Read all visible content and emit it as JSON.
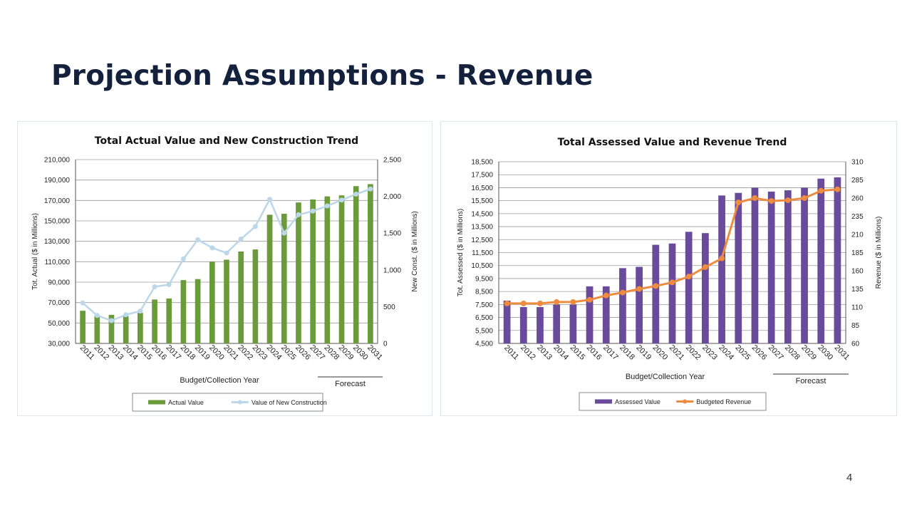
{
  "slide": {
    "title": "Projection Assumptions - Revenue",
    "page_number": "4"
  },
  "chart_data": [
    {
      "type": "bar",
      "title": "Total Actual Value and New Construction Trend",
      "xlabel": "Budget/Collection Year",
      "ylabel": "Tot. Actual ($ in Millions)",
      "y2label": "New Const. ($ in Millions)",
      "forecast_label": "Forecast",
      "categories": [
        "2011",
        "2012",
        "2013",
        "2014",
        "2015",
        "2016",
        "2017",
        "2018",
        "2019",
        "2020",
        "2021",
        "2022",
        "2023",
        "2024",
        "2025",
        "2026",
        "2027",
        "2028",
        "2029",
        "2030",
        "2031"
      ],
      "ylim": [
        30000,
        210000
      ],
      "yticks": [
        "30,000",
        "50,000",
        "70,000",
        "90,000",
        "110,000",
        "130,000",
        "150,000",
        "170,000",
        "190,000",
        "210,000"
      ],
      "y2lim": [
        0,
        2500
      ],
      "y2ticks": [
        "0",
        "500",
        "1,000",
        "1,500",
        "2,000",
        "2,500"
      ],
      "grid": true,
      "legend_position": "bottom",
      "series": [
        {
          "name": "Actual Value",
          "kind": "bar",
          "axis": "left",
          "color": "#6a9a3a",
          "values": [
            62000,
            57000,
            58000,
            57000,
            60000,
            73000,
            74000,
            92000,
            93000,
            110000,
            112000,
            120000,
            122000,
            156000,
            157000,
            168000,
            171000,
            174000,
            175000,
            184000,
            186000
          ]
        },
        {
          "name": "Value of New Construction",
          "kind": "line",
          "axis": "right",
          "color": "#bcd6ea",
          "values": [
            550,
            380,
            310,
            390,
            440,
            770,
            800,
            1150,
            1410,
            1300,
            1230,
            1420,
            1590,
            1960,
            1500,
            1750,
            1800,
            1870,
            1950,
            2030,
            2100
          ]
        }
      ]
    },
    {
      "type": "bar",
      "title": "Total Assessed Value and Revenue Trend",
      "xlabel": "Budget/Collection Year",
      "ylabel": "Tot. Assessed ($ in Millions)",
      "y2label": "Revenue ($ in Millions)",
      "forecast_label": "Forecast",
      "categories": [
        "2011",
        "2012",
        "2013",
        "2014",
        "2015",
        "2016",
        "2017",
        "2018",
        "2019",
        "2020",
        "2021",
        "2022",
        "2023",
        "2024",
        "2025",
        "2026",
        "2027",
        "2028",
        "2029",
        "2030",
        "2031"
      ],
      "ylim": [
        4500,
        18500
      ],
      "yticks": [
        "4,500",
        "5,500",
        "6,500",
        "7,500",
        "8,500",
        "9,500",
        "10,500",
        "11,500",
        "12,500",
        "13,500",
        "14,500",
        "15,500",
        "16,500",
        "17,500",
        "18,500"
      ],
      "y2lim": [
        60,
        310
      ],
      "y2ticks": [
        "60",
        "85",
        "110",
        "135",
        "160",
        "185",
        "210",
        "235",
        "260",
        "285",
        "310"
      ],
      "grid": true,
      "legend_position": "bottom",
      "series": [
        {
          "name": "Assessed Value",
          "kind": "bar",
          "axis": "left",
          "color": "#6a4a9a",
          "values": [
            7800,
            7300,
            7300,
            7500,
            7500,
            8900,
            8900,
            10300,
            10400,
            12100,
            12200,
            13100,
            13000,
            15900,
            16100,
            16500,
            16200,
            16300,
            16500,
            17200,
            17300
          ]
        },
        {
          "name": "Budgeted Revenue",
          "kind": "line",
          "axis": "right",
          "color": "#ed8b3e",
          "values": [
            115,
            115,
            115,
            117,
            117,
            120,
            126,
            130,
            135,
            139,
            144,
            152,
            165,
            177,
            254,
            260,
            256,
            257,
            260,
            270,
            272
          ]
        }
      ]
    }
  ]
}
